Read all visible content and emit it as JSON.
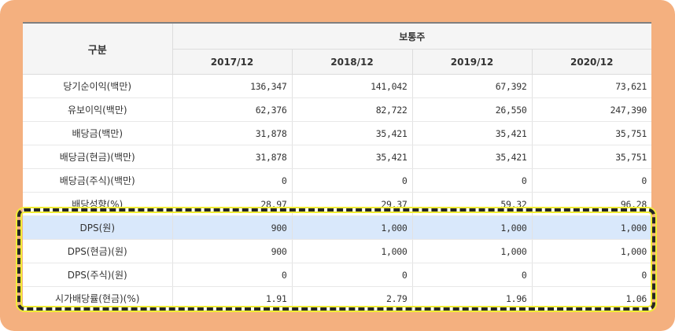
{
  "table": {
    "corner_label": "구분",
    "group_label": "보통주",
    "periods": [
      "2017/12",
      "2018/12",
      "2019/12",
      "2020/12"
    ],
    "rows": [
      {
        "label": "당기순이익(백만)",
        "values": [
          "136,347",
          "141,042",
          "67,392",
          "73,621"
        ]
      },
      {
        "label": "유보이익(백만)",
        "values": [
          "62,376",
          "82,722",
          "26,550",
          "247,390"
        ]
      },
      {
        "label": "배당금(백만)",
        "values": [
          "31,878",
          "35,421",
          "35,421",
          "35,751"
        ]
      },
      {
        "label": "배당금(현금)(백만)",
        "values": [
          "31,878",
          "35,421",
          "35,421",
          "35,751"
        ]
      },
      {
        "label": "배당금(주식)(백만)",
        "values": [
          "0",
          "0",
          "0",
          "0"
        ]
      },
      {
        "label": "배당성향(%)",
        "values": [
          "28.97",
          "29.37",
          "59.32",
          "96.28"
        ]
      },
      {
        "label": "DPS(원)",
        "values": [
          "900",
          "1,000",
          "1,000",
          "1,000"
        ]
      },
      {
        "label": "DPS(현금)(원)",
        "values": [
          "900",
          "1,000",
          "1,000",
          "1,000"
        ]
      },
      {
        "label": "DPS(주식)(원)",
        "values": [
          "0",
          "0",
          "0",
          "0"
        ]
      },
      {
        "label": "시가배당률(현금)(%)",
        "values": [
          "1.91",
          "2.79",
          "1.96",
          "1.06"
        ]
      }
    ]
  },
  "colors": {
    "frame": "#f4b07f",
    "selected_row": "#d9e8fb",
    "highlight_dash": "#252525",
    "highlight_glow": "#f1ed35"
  }
}
